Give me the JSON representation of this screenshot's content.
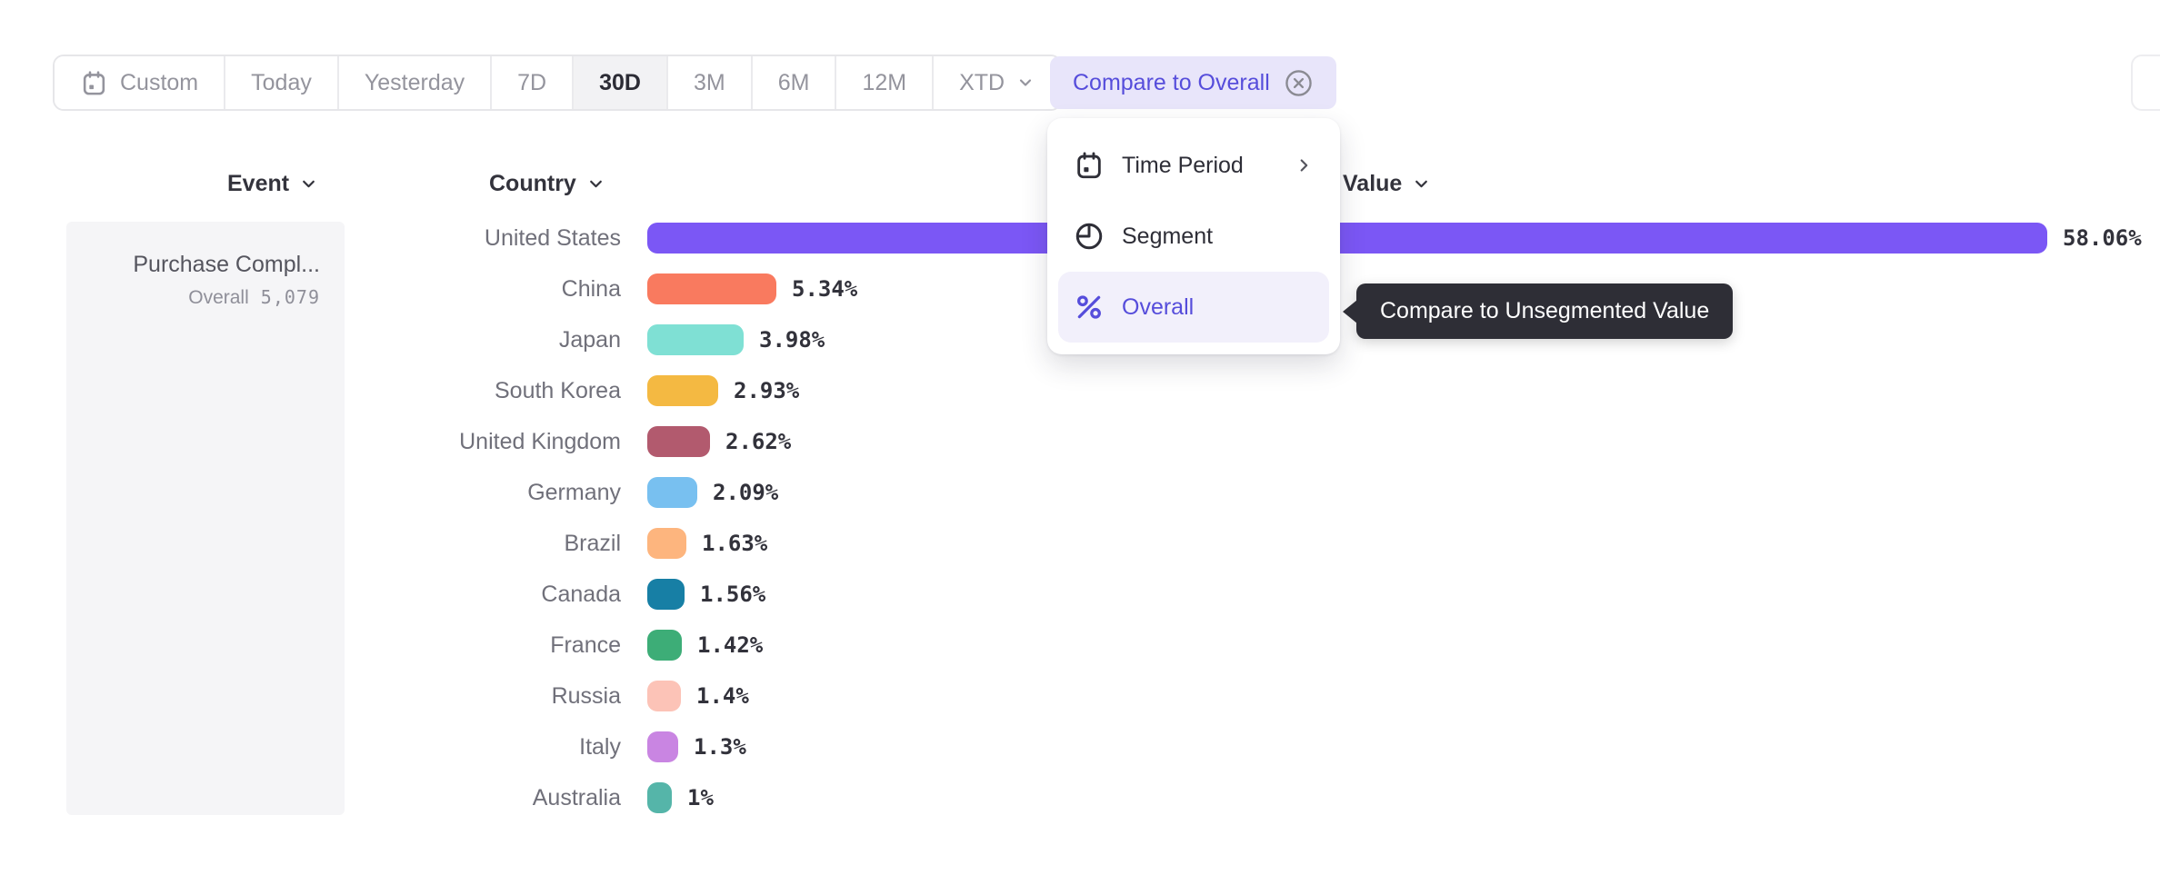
{
  "toolbar": {
    "items": [
      {
        "label": "Custom",
        "icon": "calendar-icon",
        "selected": false,
        "chevron": false
      },
      {
        "label": "Today",
        "icon": null,
        "selected": false,
        "chevron": false
      },
      {
        "label": "Yesterday",
        "icon": null,
        "selected": false,
        "chevron": false
      },
      {
        "label": "7D",
        "icon": null,
        "selected": false,
        "chevron": false
      },
      {
        "label": "30D",
        "icon": null,
        "selected": true,
        "chevron": false
      },
      {
        "label": "3M",
        "icon": null,
        "selected": false,
        "chevron": false
      },
      {
        "label": "6M",
        "icon": null,
        "selected": false,
        "chevron": false
      },
      {
        "label": "12M",
        "icon": null,
        "selected": false,
        "chevron": false
      },
      {
        "label": "XTD",
        "icon": null,
        "selected": false,
        "chevron": true
      }
    ]
  },
  "compare_chip": {
    "label": "Compare to Overall",
    "icon": "circle-x-icon"
  },
  "dropdown_menu": {
    "items": [
      {
        "label": "Time Period",
        "icon": "calendar-icon",
        "submenu": true,
        "selected": false
      },
      {
        "label": "Segment",
        "icon": "segment-icon",
        "submenu": false,
        "selected": false
      },
      {
        "label": "Overall",
        "icon": "percent-icon",
        "submenu": false,
        "selected": true
      }
    ]
  },
  "tooltip": {
    "text": "Compare to Unsegmented Value"
  },
  "columns": {
    "event": "Event",
    "country": "Country",
    "value": "Value"
  },
  "event_card": {
    "name": "Purchase Compl...",
    "overall_label": "Overall",
    "overall_value": "5,079"
  },
  "chart_data": {
    "type": "bar",
    "orientation": "horizontal",
    "title": "",
    "xlabel": "Value",
    "ylabel": "Country",
    "categories": [
      "United States",
      "China",
      "Japan",
      "South Korea",
      "United Kingdom",
      "Germany",
      "Brazil",
      "Canada",
      "France",
      "Russia",
      "Italy",
      "Australia"
    ],
    "values": [
      58.06,
      5.34,
      3.98,
      2.93,
      2.62,
      2.09,
      1.63,
      1.56,
      1.42,
      1.4,
      1.3,
      1
    ],
    "value_labels": [
      "58.06%",
      "5.34%",
      "3.98%",
      "2.93%",
      "2.62%",
      "2.09%",
      "1.63%",
      "1.56%",
      "1.42%",
      "1.4%",
      "1.3%",
      "1%"
    ],
    "bar_colors": [
      "#7b57f5",
      "#f97a5f",
      "#7fe0d4",
      "#f4b942",
      "#b25a6e",
      "#78c0f0",
      "#fdb57e",
      "#177fa5",
      "#3dad77",
      "#fcc3b7",
      "#c985e2",
      "#55b5a9"
    ],
    "max_value": 58.06,
    "value_format": "percent",
    "grid": false,
    "legend": false
  },
  "colors": {
    "accent": "#564ddb",
    "accent_bar": "#7b57f5",
    "chip_bg": "#e8e5fa",
    "selected_item_bg": "#f2f0fb",
    "tooltip_bg": "#2e2e36",
    "toolbar_selected_bg": "#f2f2f4",
    "muted_text": "#94949d",
    "label_text": "#70707a"
  }
}
